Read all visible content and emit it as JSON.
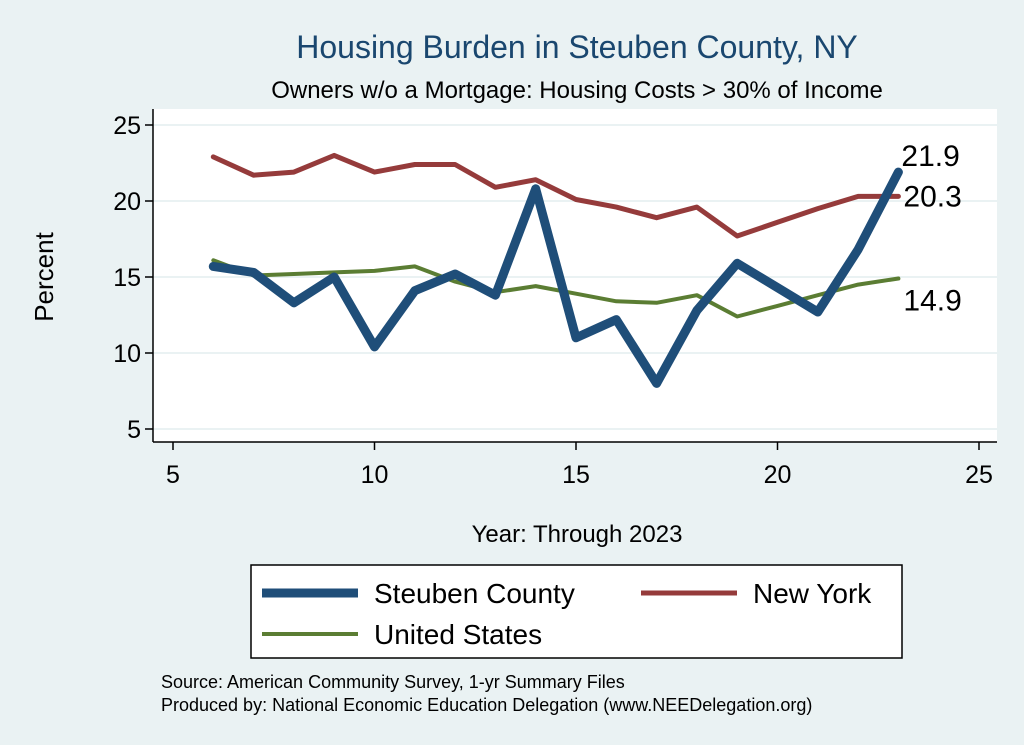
{
  "colors": {
    "background": "#eaf2f3",
    "plot_background": "#ffffff",
    "title": "#1a476f",
    "grid": "#eaf2f3"
  },
  "chart_data": {
    "type": "line",
    "title": "Housing Burden in Steuben County, NY",
    "subtitle": "Owners w/o a Mortgage: Housing Costs > 30% of Income",
    "xlabel": "Year: Through 2023",
    "ylabel": "Percent",
    "xlim": [
      5,
      25
    ],
    "ylim": [
      5,
      25
    ],
    "xticks": [
      5,
      10,
      15,
      20,
      25
    ],
    "yticks": [
      5,
      10,
      15,
      20,
      25
    ],
    "grid": true,
    "legend_position": "bottom",
    "x": [
      6,
      7,
      8,
      9,
      10,
      11,
      12,
      13,
      14,
      15,
      16,
      17,
      18,
      19,
      20,
      21,
      22,
      23
    ],
    "series": [
      {
        "name": "Steuben County",
        "color": "#1f4e79",
        "values": [
          15.7,
          15.3,
          13.3,
          15.0,
          10.4,
          14.1,
          15.2,
          13.8,
          20.8,
          11.0,
          12.2,
          8.0,
          12.8,
          15.9,
          14.3,
          12.7,
          16.8,
          21.9
        ],
        "end_label": "21.9"
      },
      {
        "name": "New York",
        "color": "#953b3b",
        "values": [
          22.9,
          21.7,
          21.9,
          23.0,
          21.9,
          22.4,
          22.4,
          20.9,
          21.4,
          20.1,
          19.6,
          18.9,
          19.6,
          17.7,
          18.6,
          19.5,
          20.3,
          20.3
        ],
        "end_label": "20.3"
      },
      {
        "name": "United States",
        "color": "#5b7d33",
        "values": [
          16.1,
          15.1,
          15.2,
          15.3,
          15.4,
          15.7,
          14.7,
          14.0,
          14.4,
          13.9,
          13.4,
          13.3,
          13.8,
          12.4,
          13.1,
          13.8,
          14.5,
          14.9
        ],
        "end_label": "14.9"
      }
    ]
  },
  "notes": {
    "source": "Source: American Community Survey, 1-yr Summary Files",
    "produced_by": "Produced by: National Economic Education Delegation (www.NEEDelegation.org)"
  }
}
